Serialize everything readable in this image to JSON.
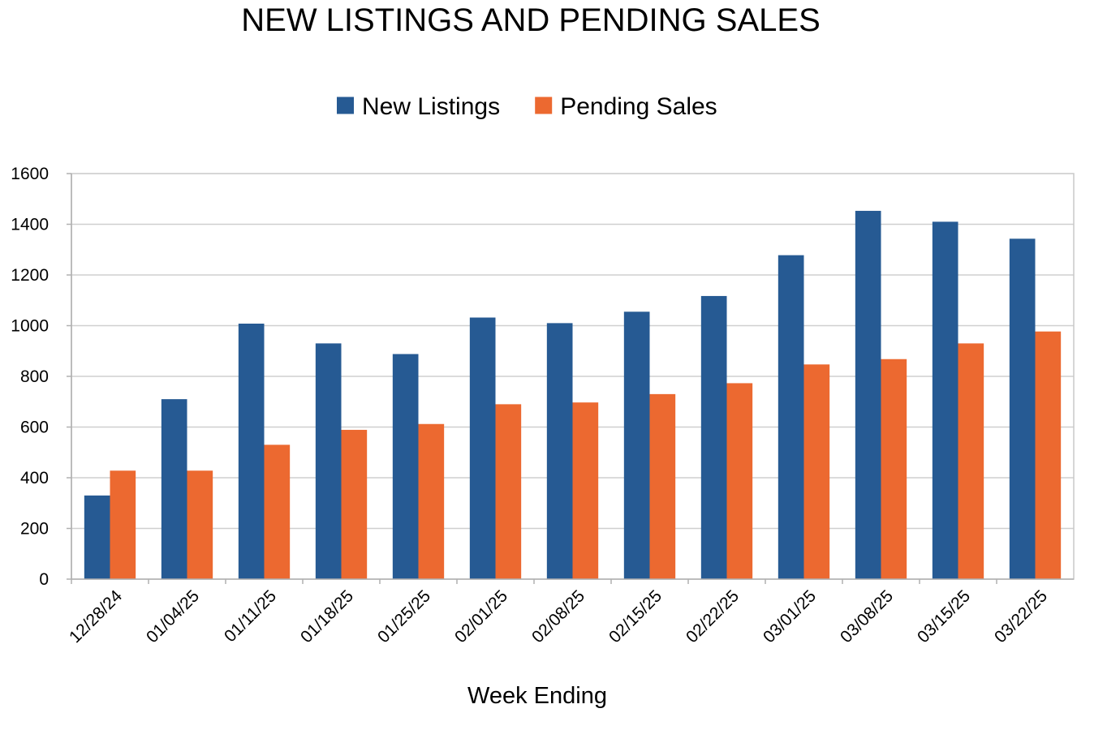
{
  "chart_data": {
    "type": "bar",
    "title": "NEW LISTINGS AND PENDING SALES",
    "xlabel": "Week Ending",
    "ylabel": "",
    "categories": [
      "12/28/24",
      "01/04/25",
      "01/11/25",
      "01/18/25",
      "01/25/25",
      "02/01/25",
      "02/08/25",
      "02/15/25",
      "02/22/25",
      "03/01/25",
      "03/08/25",
      "03/15/25",
      "03/22/25"
    ],
    "series": [
      {
        "name": "New Listings",
        "color": "#265a93",
        "values": [
          330,
          710,
          1008,
          930,
          888,
          1032,
          1010,
          1055,
          1117,
          1278,
          1453,
          1410,
          1343
        ]
      },
      {
        "name": "Pending Sales",
        "color": "#ec6930",
        "values": [
          428,
          428,
          530,
          589,
          612,
          690,
          697,
          730,
          773,
          847,
          868,
          930,
          977
        ]
      }
    ],
    "ylim": [
      0,
      1600
    ],
    "yticks": [
      0,
      200,
      400,
      600,
      800,
      1000,
      1200,
      1400,
      1600
    ],
    "grid": true,
    "legend_position": "top"
  }
}
